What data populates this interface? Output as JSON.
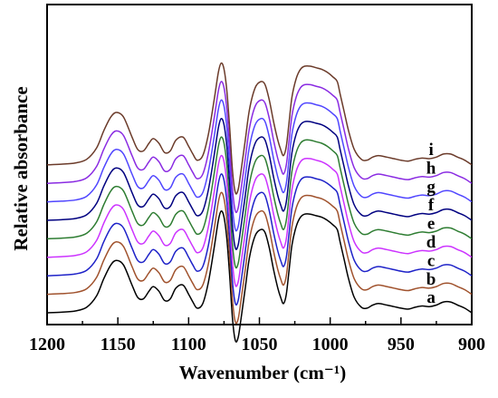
{
  "chart_data": {
    "type": "line",
    "title": "",
    "xlabel": "Wavenumber (cm⁻¹)",
    "ylabel": "Relative absorbance",
    "xlim": [
      1200,
      900
    ],
    "x_reversed": true,
    "y_ticks_shown": false,
    "grid": false,
    "xticks": [
      1200,
      1150,
      1100,
      1050,
      1000,
      950,
      900
    ],
    "tick_labels": [
      "1200",
      "1150",
      "1100",
      "1050",
      "1000",
      "950",
      "900"
    ],
    "x": [
      1200,
      1190,
      1180,
      1172,
      1165,
      1160,
      1155,
      1151,
      1146,
      1140,
      1136,
      1132,
      1128,
      1125,
      1121,
      1117,
      1113,
      1109,
      1104,
      1100,
      1097,
      1094,
      1090,
      1086,
      1082,
      1079,
      1077,
      1075,
      1073,
      1071,
      1069,
      1067,
      1065,
      1063,
      1060,
      1057,
      1053,
      1049,
      1046,
      1043,
      1040,
      1037,
      1035,
      1033,
      1031,
      1029,
      1027,
      1024,
      1021,
      1018,
      1014,
      1010,
      1006,
      1002,
      998,
      995,
      993,
      990,
      987,
      983,
      978,
      974,
      970,
      966,
      960,
      955,
      950,
      945,
      940,
      935,
      930,
      925,
      920,
      915,
      910,
      905,
      900
    ],
    "series": [
      {
        "name": "a",
        "color": "#000000",
        "offset": 0,
        "values": [
          0,
          0.2,
          0.6,
          1.8,
          5.5,
          11,
          15.5,
          17,
          15.5,
          9,
          5,
          4.5,
          7,
          8.5,
          7,
          4,
          4.5,
          8,
          9,
          6,
          3.5,
          1.5,
          3,
          10,
          21,
          30,
          33,
          31,
          24,
          12,
          -2,
          -9,
          -8,
          -2,
          8,
          18,
          25,
          27,
          26,
          21,
          14,
          8,
          5,
          3,
          6,
          14,
          22,
          28,
          31,
          32,
          32,
          31.5,
          31,
          30,
          28.5,
          27,
          23,
          17,
          11,
          5,
          1.8,
          1.5,
          2.5,
          3,
          2.5,
          2,
          1.5,
          1.2,
          1.8,
          2.2,
          2,
          2.5,
          3.5,
          3.5,
          2.5,
          1.5,
          0
        ]
      },
      {
        "name": "b",
        "color": "#a0522d",
        "offset": 6,
        "values": [
          0,
          0.2,
          0.6,
          1.8,
          5.5,
          11,
          15.5,
          17,
          15.5,
          9,
          5,
          4.5,
          7,
          8.5,
          7,
          4,
          4.5,
          8,
          9,
          6,
          3.5,
          1.5,
          3,
          10,
          21,
          30,
          33,
          31,
          24,
          12,
          -2,
          -9,
          -8,
          -2,
          8,
          18,
          25,
          27,
          26,
          21,
          14,
          8,
          5,
          3,
          6,
          14,
          22,
          28,
          31,
          32,
          32,
          31.5,
          31,
          30,
          28.5,
          27,
          23,
          17,
          11,
          5,
          1.8,
          1.5,
          2.5,
          3,
          2.5,
          2,
          1.5,
          1.2,
          1.8,
          2.2,
          2,
          2.5,
          3.5,
          3.5,
          2.5,
          1.5,
          0
        ]
      },
      {
        "name": "c",
        "color": "#1e22c8",
        "offset": 12,
        "values": [
          0,
          0.2,
          0.6,
          1.8,
          5.5,
          11,
          15.5,
          17,
          15.5,
          9,
          5,
          4.5,
          7,
          8.5,
          7,
          4,
          4.5,
          8,
          9,
          6,
          3.5,
          1.5,
          3,
          10,
          21,
          30,
          33,
          31,
          24,
          12,
          -2,
          -9,
          -8,
          -2,
          8,
          18,
          25,
          27,
          26,
          21,
          14,
          8,
          5,
          3,
          6,
          14,
          22,
          28,
          31,
          32,
          32,
          31.5,
          31,
          30,
          28.5,
          27,
          23,
          17,
          11,
          5,
          1.8,
          1.5,
          2.5,
          3,
          2.5,
          2,
          1.5,
          1.2,
          1.8,
          2.2,
          2,
          2.5,
          3.5,
          3.5,
          2.5,
          1.5,
          0
        ]
      },
      {
        "name": "d",
        "color": "#cc33ff",
        "offset": 18,
        "values": [
          0,
          0.2,
          0.6,
          1.8,
          5.5,
          11,
          15.5,
          17,
          15.5,
          9,
          5,
          4.5,
          7,
          8.5,
          7,
          4,
          4.5,
          8,
          9,
          6,
          3.5,
          1.5,
          3,
          10,
          21,
          30,
          33,
          31,
          24,
          12,
          -2,
          -9,
          -8,
          -2,
          8,
          18,
          25,
          27,
          26,
          21,
          14,
          8,
          5,
          3,
          6,
          14,
          22,
          28,
          31,
          32,
          32,
          31.5,
          31,
          30,
          28.5,
          27,
          23,
          17,
          11,
          5,
          1.8,
          1.5,
          2.5,
          3,
          2.5,
          2,
          1.5,
          1.2,
          1.8,
          2.2,
          2,
          2.5,
          3.5,
          3.5,
          2.5,
          1.5,
          0
        ]
      },
      {
        "name": "e",
        "color": "#2e7d32",
        "offset": 24,
        "values": [
          0,
          0.2,
          0.6,
          1.8,
          5.5,
          11,
          15.5,
          17,
          15.5,
          9,
          5,
          4.5,
          7,
          8.5,
          7,
          4,
          4.5,
          8,
          9,
          6,
          3.5,
          1.5,
          3,
          10,
          21,
          30,
          33,
          31,
          24,
          12,
          -2,
          -9,
          -8,
          -2,
          8,
          18,
          25,
          27,
          26,
          21,
          14,
          8,
          5,
          3,
          6,
          14,
          22,
          28,
          31,
          32,
          32,
          31.5,
          31,
          30,
          28.5,
          27,
          23,
          17,
          11,
          5,
          1.8,
          1.5,
          2.5,
          3,
          2.5,
          2,
          1.5,
          1.2,
          1.8,
          2.2,
          2,
          2.5,
          3.5,
          3.5,
          2.5,
          1.5,
          0
        ]
      },
      {
        "name": "f",
        "color": "#000080",
        "offset": 30,
        "values": [
          0,
          0.2,
          0.6,
          1.8,
          5.5,
          11,
          15.5,
          17,
          15.5,
          9,
          5,
          4.5,
          7,
          8.5,
          7,
          4,
          4.5,
          8,
          9,
          6,
          3.5,
          1.5,
          3,
          10,
          21,
          30,
          33,
          31,
          24,
          12,
          -2,
          -9,
          -8,
          -2,
          8,
          18,
          25,
          27,
          26,
          21,
          14,
          8,
          5,
          3,
          6,
          14,
          22,
          28,
          31,
          32,
          32,
          31.5,
          31,
          30,
          28.5,
          27,
          23,
          17,
          11,
          5,
          1.8,
          1.5,
          2.5,
          3,
          2.5,
          2,
          1.5,
          1.2,
          1.8,
          2.2,
          2,
          2.5,
          3.5,
          3.5,
          2.5,
          1.5,
          0
        ]
      },
      {
        "name": "g",
        "color": "#5046ff",
        "offset": 36,
        "values": [
          0,
          0.2,
          0.6,
          1.8,
          5.5,
          11,
          15.5,
          17,
          15.5,
          9,
          5,
          4.5,
          7,
          8.5,
          7,
          4,
          4.5,
          8,
          9,
          6,
          3.5,
          1.5,
          3,
          10,
          21,
          30,
          33,
          31,
          24,
          12,
          -2,
          -9,
          -8,
          -2,
          8,
          18,
          25,
          27,
          26,
          21,
          14,
          8,
          5,
          3,
          6,
          14,
          22,
          28,
          31,
          32,
          32,
          31.5,
          31,
          30,
          28.5,
          27,
          23,
          17,
          11,
          5,
          1.8,
          1.5,
          2.5,
          3,
          2.5,
          2,
          1.5,
          1.2,
          1.8,
          2.2,
          2,
          2.5,
          3.5,
          3.5,
          2.5,
          1.5,
          0
        ]
      },
      {
        "name": "h",
        "color": "#8a2be2",
        "offset": 42,
        "values": [
          0,
          0.2,
          0.6,
          1.8,
          5.5,
          11,
          15.5,
          17,
          15.5,
          9,
          5,
          4.5,
          7,
          8.5,
          7,
          4,
          4.5,
          8,
          9,
          6,
          3.5,
          1.5,
          3,
          10,
          21,
          30,
          33,
          31,
          24,
          12,
          -2,
          -9,
          -8,
          -2,
          8,
          18,
          25,
          27,
          26,
          21,
          14,
          8,
          5,
          3,
          6,
          14,
          22,
          28,
          31,
          32,
          32,
          31.5,
          31,
          30,
          28.5,
          27,
          23,
          17,
          11,
          5,
          1.8,
          1.5,
          2.5,
          3,
          2.5,
          2,
          1.5,
          1.2,
          1.8,
          2.2,
          2,
          2.5,
          3.5,
          3.5,
          2.5,
          1.5,
          0
        ]
      },
      {
        "name": "i",
        "color": "#6b3b2a",
        "offset": 48,
        "values": [
          0,
          0.2,
          0.6,
          1.8,
          5.5,
          11,
          15.5,
          17,
          15.5,
          9,
          5,
          4.5,
          7,
          8.5,
          7,
          4,
          4.5,
          8,
          9,
          6,
          3.5,
          1.5,
          3,
          10,
          21,
          30,
          33,
          31,
          24,
          12,
          -2,
          -9,
          -8,
          -2,
          8,
          18,
          25,
          27,
          26,
          21,
          14,
          8,
          5,
          3,
          6,
          14,
          22,
          28,
          31,
          32,
          32,
          31.5,
          31,
          30,
          28.5,
          27,
          23,
          17,
          11,
          5,
          1.8,
          1.5,
          2.5,
          3,
          2.5,
          2,
          1.5,
          1.2,
          1.8,
          2.2,
          2,
          2.5,
          3.5,
          3.5,
          2.5,
          1.5,
          0
        ]
      }
    ]
  }
}
